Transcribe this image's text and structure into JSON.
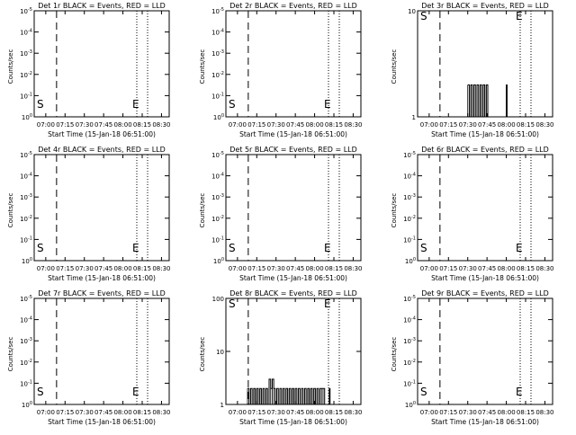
{
  "chart_data": [
    {
      "type": "line",
      "title": "Det 1r BLACK = Events, RED = LLD",
      "xlabel": "Start Time (15-Jan-18 06:51:00)",
      "ylabel": "Counts/sec",
      "yscale": "log",
      "ytick_labels": [
        "10^0",
        "10^-1",
        "10^-2",
        "10^-3",
        "10^-4",
        "10^-5"
      ],
      "xtick_labels": [
        "07:00",
        "07:15",
        "07:30",
        "07:45",
        "08:00",
        "08:15",
        "08:30"
      ],
      "marker_labels": [
        "S",
        "E"
      ],
      "series": [
        {
          "values": []
        }
      ]
    },
    {
      "type": "line",
      "title": "Det 2r BLACK = Events, RED = LLD",
      "xlabel": "Start Time (15-Jan-18 06:51:00)",
      "ylabel": "Counts/sec",
      "yscale": "log",
      "ytick_labels": [
        "10^0",
        "10^-1",
        "10^-2",
        "10^-3",
        "10^-4",
        "10^-5"
      ],
      "xtick_labels": [
        "07:00",
        "07:15",
        "07:30",
        "07:45",
        "08:00",
        "08:15",
        "08:30"
      ],
      "marker_labels": [
        "S",
        "E"
      ],
      "series": [
        {
          "values": []
        }
      ]
    },
    {
      "type": "line",
      "title": "Det 3r BLACK = Events, RED = LLD",
      "xlabel": "Start Time (15-Jan-18 06:51:00)",
      "ylabel": "Counts/sec",
      "yscale": "log",
      "ytick_labels": [
        "1",
        "10"
      ],
      "xtick_labels": [
        "07:00",
        "07:15",
        "07:30",
        "07:45",
        "08:00",
        "08:15",
        "08:30"
      ],
      "marker_labels": [
        "S",
        "E"
      ],
      "series": [
        {
          "values": [
            [
              7.5,
              2
            ],
            [
              7.52,
              1
            ],
            [
              7.54,
              2
            ],
            [
              7.56,
              1
            ],
            [
              7.58,
              2
            ],
            [
              7.6,
              1
            ],
            [
              7.62,
              2
            ],
            [
              7.64,
              1
            ],
            [
              7.66,
              2
            ],
            [
              7.68,
              1
            ],
            [
              7.7,
              2
            ],
            [
              7.72,
              1
            ],
            [
              7.74,
              2
            ],
            [
              7.76,
              1
            ],
            [
              8.0,
              2
            ],
            [
              8.01,
              1
            ]
          ]
        }
      ]
    },
    {
      "type": "line",
      "title": "Det 4r BLACK = Events, RED = LLD",
      "xlabel": "Start Time (15-Jan-18 06:51:00)",
      "ylabel": "Counts/sec",
      "yscale": "log",
      "ytick_labels": [
        "10^0",
        "10^-1",
        "10^-2",
        "10^-3",
        "10^-4",
        "10^-5"
      ],
      "xtick_labels": [
        "07:00",
        "07:15",
        "07:30",
        "07:45",
        "08:00",
        "08:15",
        "08:30"
      ],
      "marker_labels": [
        "S",
        "E"
      ],
      "series": [
        {
          "values": []
        }
      ]
    },
    {
      "type": "line",
      "title": "Det 5r BLACK = Events, RED = LLD",
      "xlabel": "Start Time (15-Jan-18 06:51:00)",
      "ylabel": "Counts/sec",
      "yscale": "log",
      "ytick_labels": [
        "10^0",
        "10^-1",
        "10^-2",
        "10^-3",
        "10^-4",
        "10^-5"
      ],
      "xtick_labels": [
        "07:00",
        "07:15",
        "07:30",
        "07:45",
        "08:00",
        "08:15",
        "08:30"
      ],
      "marker_labels": [
        "S",
        "E"
      ],
      "series": [
        {
          "values": []
        }
      ]
    },
    {
      "type": "line",
      "title": "Det 6r BLACK = Events, RED = LLD",
      "xlabel": "Start Time (15-Jan-18 06:51:00)",
      "ylabel": "Counts/sec",
      "yscale": "log",
      "ytick_labels": [
        "10^0",
        "10^-1",
        "10^-2",
        "10^-3",
        "10^-4",
        "10^-5"
      ],
      "xtick_labels": [
        "07:00",
        "07:15",
        "07:30",
        "07:45",
        "08:00",
        "08:15",
        "08:30"
      ],
      "marker_labels": [
        "S",
        "E"
      ],
      "series": [
        {
          "values": []
        }
      ]
    },
    {
      "type": "line",
      "title": "Det 7r BLACK = Events, RED = LLD",
      "xlabel": "Start Time (15-Jan-18 06:51:00)",
      "ylabel": "Counts/sec",
      "yscale": "log",
      "ytick_labels": [
        "10^0",
        "10^-1",
        "10^-2",
        "10^-3",
        "10^-4",
        "10^-5"
      ],
      "xtick_labels": [
        "07:00",
        "07:15",
        "07:30",
        "07:45",
        "08:00",
        "08:15",
        "08:30"
      ],
      "marker_labels": [
        "S",
        "E"
      ],
      "series": [
        {
          "values": []
        }
      ]
    },
    {
      "type": "line",
      "title": "Det 8r BLACK = Events, RED = LLD",
      "xlabel": "Start Time (15-Jan-18 06:51:00)",
      "ylabel": "Counts/sec",
      "yscale": "log",
      "ytick_labels": [
        "1",
        "10",
        "100"
      ],
      "xtick_labels": [
        "07:00",
        "07:15",
        "07:30",
        "07:45",
        "08:00",
        "08:15",
        "08:30"
      ],
      "marker_labels": [
        "S",
        "E"
      ],
      "series": [
        {
          "values": [
            [
              7.13,
              2
            ],
            [
              7.15,
              1
            ],
            [
              7.17,
              2
            ],
            [
              7.19,
              1
            ],
            [
              7.21,
              2
            ],
            [
              7.23,
              1
            ],
            [
              7.25,
              2
            ],
            [
              7.27,
              1
            ],
            [
              7.29,
              2
            ],
            [
              7.31,
              1
            ],
            [
              7.33,
              2
            ],
            [
              7.35,
              1
            ],
            [
              7.37,
              2
            ],
            [
              7.39,
              1
            ],
            [
              7.41,
              3
            ],
            [
              7.43,
              2
            ],
            [
              7.45,
              3
            ],
            [
              7.47,
              2
            ],
            [
              7.49,
              1
            ],
            [
              7.51,
              2
            ],
            [
              7.53,
              1
            ],
            [
              7.55,
              2
            ],
            [
              7.57,
              1
            ],
            [
              7.59,
              2
            ],
            [
              7.61,
              1
            ],
            [
              7.63,
              2
            ],
            [
              7.65,
              1
            ],
            [
              7.67,
              2
            ],
            [
              7.69,
              1
            ],
            [
              7.71,
              2
            ],
            [
              7.73,
              1
            ],
            [
              7.75,
              2
            ],
            [
              7.77,
              1
            ],
            [
              7.79,
              2
            ],
            [
              7.81,
              1
            ],
            [
              7.83,
              2
            ],
            [
              7.85,
              1
            ],
            [
              7.87,
              2
            ],
            [
              7.89,
              1
            ],
            [
              7.91,
              2
            ],
            [
              7.93,
              1
            ],
            [
              7.95,
              2
            ],
            [
              7.97,
              1
            ],
            [
              7.99,
              2
            ],
            [
              8.01,
              1
            ],
            [
              8.03,
              2
            ],
            [
              8.05,
              1
            ],
            [
              8.07,
              2
            ],
            [
              8.09,
              2
            ],
            [
              8.11,
              2
            ],
            [
              8.13,
              1
            ],
            [
              8.17,
              1
            ],
            [
              8.19,
              2
            ],
            [
              8.2,
              1
            ]
          ]
        }
      ]
    },
    {
      "type": "line",
      "title": "Det 9r BLACK = Events, RED = LLD",
      "xlabel": "Start Time (15-Jan-18 06:51:00)",
      "ylabel": "Counts/sec",
      "yscale": "log",
      "ytick_labels": [
        "10^0",
        "10^-1",
        "10^-2",
        "10^-3",
        "10^-4",
        "10^-5"
      ],
      "xtick_labels": [
        "07:00",
        "07:15",
        "07:30",
        "07:45",
        "08:00",
        "08:15",
        "08:30"
      ],
      "marker_labels": [
        "S",
        "E"
      ],
      "series": [
        {
          "values": []
        }
      ]
    }
  ],
  "colors": {
    "axes": "#000000",
    "background": "#ffffff"
  }
}
